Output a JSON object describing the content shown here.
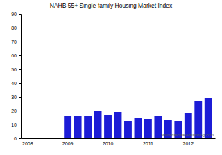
{
  "chart_data": {
    "type": "bar",
    "title": "NAHB 55+ Single-family Housing Market Index",
    "categories": [
      "2008",
      null,
      null,
      null,
      "2009",
      null,
      null,
      null,
      "2010",
      null,
      null,
      null,
      "2011",
      null,
      null,
      null,
      "2012",
      null,
      null
    ],
    "values": [
      null,
      null,
      null,
      null,
      16,
      16.5,
      16.5,
      20,
      17,
      19,
      12.5,
      15,
      14,
      16.5,
      13,
      12.5,
      18,
      27,
      29
    ],
    "color": "#1c1cd6",
    "ylim": [
      0,
      90
    ],
    "yticks": [
      0,
      10,
      20,
      30,
      40,
      50,
      60,
      70,
      80,
      90
    ],
    "grid": false,
    "annotation": "www.calculatedriskblog.com"
  }
}
